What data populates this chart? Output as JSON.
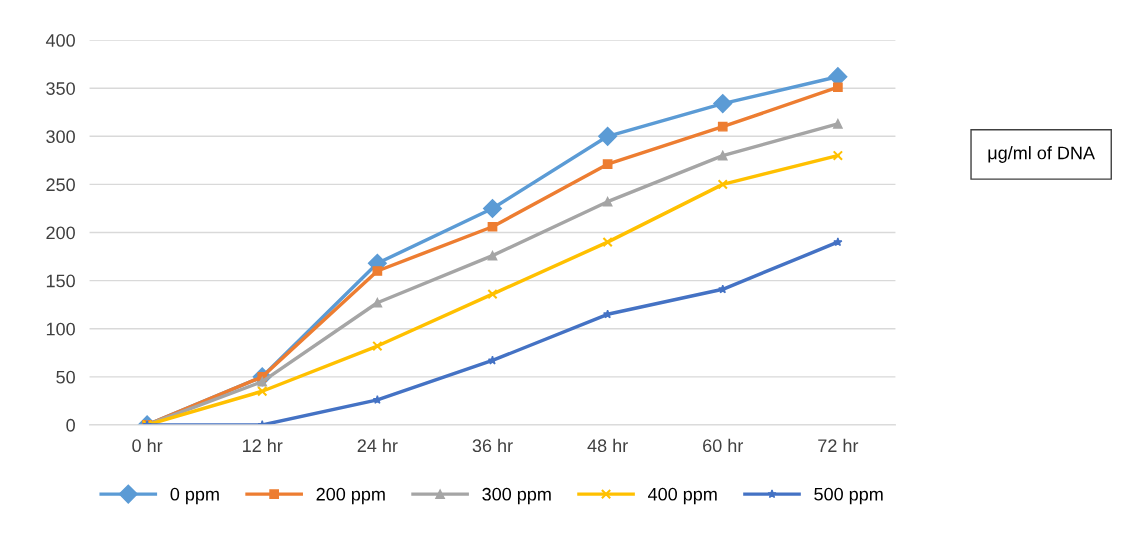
{
  "chart_data": {
    "type": "line",
    "categories": [
      "0 hr",
      "12 hr",
      "24 hr",
      "36 hr",
      "48 hr",
      "60 hr",
      "72 hr"
    ],
    "series": [
      {
        "name": "0 ppm",
        "color": "#5b9bd5",
        "marker": "diamond",
        "values": [
          0,
          50,
          168,
          225,
          300,
          334,
          362
        ]
      },
      {
        "name": "200 ppm",
        "color": "#ed7d31",
        "marker": "square",
        "values": [
          0,
          50,
          160,
          206,
          271,
          310,
          351
        ]
      },
      {
        "name": "300 ppm",
        "color": "#a5a5a5",
        "marker": "triangle",
        "values": [
          0,
          45,
          127,
          176,
          232,
          280,
          313
        ]
      },
      {
        "name": "400 ppm",
        "color": "#ffc000",
        "marker": "cross",
        "values": [
          0,
          35,
          82,
          136,
          190,
          250,
          280
        ]
      },
      {
        "name": "500 ppm",
        "color": "#4472c4",
        "marker": "star",
        "values": [
          0,
          0,
          26,
          67,
          115,
          141,
          190
        ]
      }
    ],
    "ylim": [
      0,
      400
    ],
    "yticks": [
      0,
      50,
      100,
      150,
      200,
      250,
      300,
      350,
      400
    ],
    "grid": "y",
    "legend": "bottom",
    "line_style": "solid",
    "annotations": [
      "μg/ml of DNA"
    ]
  }
}
